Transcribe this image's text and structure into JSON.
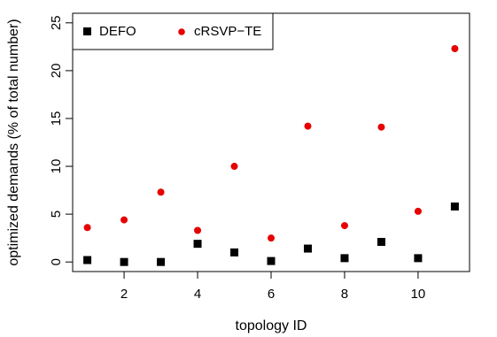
{
  "chart_data": {
    "type": "scatter",
    "title": "",
    "xlabel": "topology ID",
    "ylabel": "optimized demands (% of total number)",
    "xlim": [
      0.6,
      11.4
    ],
    "ylim": [
      -1.0,
      26.0
    ],
    "xticks": [
      2,
      4,
      6,
      8,
      10
    ],
    "xtick_labels": [
      "2",
      "4",
      "6",
      "8",
      "10"
    ],
    "yticks": [
      0,
      5,
      10,
      15,
      20,
      25
    ],
    "ytick_labels": [
      "0",
      "5",
      "10",
      "15",
      "20",
      "25"
    ],
    "grid": false,
    "legend_position": "top-left",
    "x": [
      1,
      2,
      3,
      4,
      5,
      6,
      7,
      8,
      9,
      10,
      11
    ],
    "series": [
      {
        "name": "DEFO",
        "marker": "square",
        "color": "#000000",
        "values": [
          0.2,
          0.0,
          0.0,
          1.9,
          1.0,
          0.1,
          1.4,
          0.4,
          2.1,
          0.4,
          5.8
        ]
      },
      {
        "name": "cRSVP−TE",
        "marker": "circle",
        "color": "#e60000",
        "values": [
          3.6,
          4.4,
          7.3,
          3.3,
          10.0,
          2.5,
          14.2,
          3.8,
          14.1,
          5.3,
          22.3
        ]
      }
    ]
  }
}
